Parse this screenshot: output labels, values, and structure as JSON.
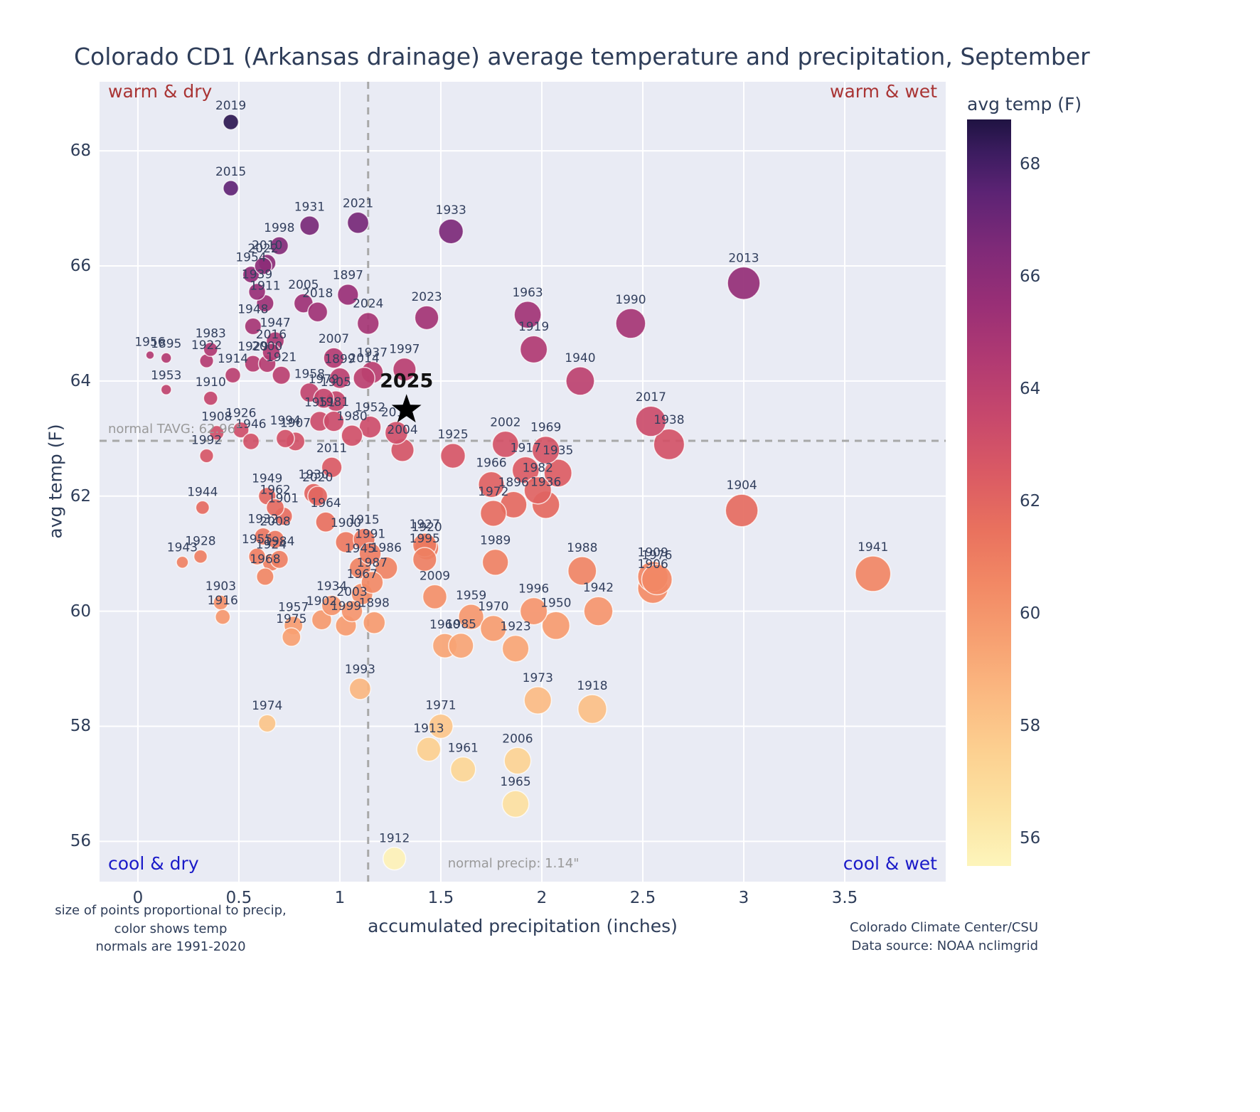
{
  "title": "Colorado CD1 (Arkansas drainage) average temperature and precipitation, September",
  "quadrant_labels": {
    "top_left": "warm & dry",
    "top_right": "warm & wet",
    "bottom_left": "cool & dry",
    "bottom_right": "cool & wet"
  },
  "normals": {
    "tavg_label": "normal TAVG: 62.96°",
    "tavg_value": 62.96,
    "precip_label": "normal precip: 1.14\"",
    "precip_value": 1.14
  },
  "axes": {
    "xlabel": "accumulated precipitation (inches)",
    "ylabel": "avg temp (F)",
    "xticks": [
      "0",
      "0.5",
      "1",
      "1.5",
      "2",
      "2.5",
      "3",
      "3.5"
    ],
    "yticks": [
      "56",
      "58",
      "60",
      "62",
      "64",
      "66",
      "68"
    ],
    "xlim": [
      -0.19,
      4.0
    ],
    "ylim": [
      55.3,
      69.2
    ]
  },
  "colorbar": {
    "title": "avg temp (F)",
    "ticks": [
      "68",
      "66",
      "64",
      "62",
      "60",
      "58",
      "56"
    ],
    "domain": [
      55.5,
      68.8
    ],
    "stops": [
      [
        55.5,
        "#fdf5bb"
      ],
      [
        56.5,
        "#fce3a2"
      ],
      [
        57.5,
        "#fcd191"
      ],
      [
        58.5,
        "#fbba82"
      ],
      [
        59.5,
        "#f7a172"
      ],
      [
        60.5,
        "#f28965"
      ],
      [
        61.5,
        "#e9715e"
      ],
      [
        62.5,
        "#da5a64"
      ],
      [
        63.5,
        "#c7486c"
      ],
      [
        64.5,
        "#b13a72"
      ],
      [
        65.5,
        "#992f76"
      ],
      [
        66.5,
        "#7f2a78"
      ],
      [
        67.5,
        "#5c2374"
      ],
      [
        68.2,
        "#3c1c60"
      ],
      [
        68.8,
        "#1f1342"
      ]
    ]
  },
  "colors": {
    "plot_bg": "#e9ebf4",
    "grid": "#ffffff",
    "dashed": "#a8a8a8",
    "text": "#2e3d59",
    "point_label": "#33405e",
    "warm_label": "#a93434",
    "cool_label": "#1a1ac8",
    "star": "#000000"
  },
  "footnotes": {
    "left": [
      "size of points proportional to precip,",
      "color shows temp",
      "normals are 1991-2020"
    ],
    "right": [
      "Colorado Climate Center/CSU",
      "Data source: NOAA nclimgrid"
    ]
  },
  "chart_data": {
    "type": "scatter",
    "title": "Colorado CD1 (Arkansas drainage) average temperature and precipitation, September",
    "xlabel": "accumulated precipitation (inches)",
    "ylabel": "avg temp (F)",
    "xlim": [
      -0.19,
      4.0
    ],
    "ylim": [
      55.3,
      69.2
    ],
    "size_encoding": "precip",
    "color_encoding": "temp",
    "highlight": {
      "year": "2025",
      "precip": 1.33,
      "temp": 63.5,
      "marker": "star"
    },
    "columns": [
      "year",
      "precip_in",
      "avg_temp_f"
    ],
    "points": [
      [
        1895,
        0.14,
        64.4
      ],
      [
        1896,
        1.86,
        61.85
      ],
      [
        1897,
        1.04,
        65.5
      ],
      [
        1898,
        1.17,
        59.8
      ],
      [
        1899,
        1.0,
        64.05
      ],
      [
        1900,
        1.03,
        61.2
      ],
      [
        1901,
        0.72,
        61.65
      ],
      [
        1902,
        0.91,
        59.85
      ],
      [
        1903,
        0.41,
        60.15
      ],
      [
        1904,
        2.99,
        61.75
      ],
      [
        1905,
        0.98,
        63.65
      ],
      [
        1906,
        2.55,
        60.4
      ],
      [
        1907,
        0.78,
        62.95
      ],
      [
        1908,
        0.39,
        63.1
      ],
      [
        1909,
        2.55,
        60.6
      ],
      [
        1910,
        0.36,
        63.7
      ],
      [
        1911,
        0.63,
        65.35
      ],
      [
        1912,
        1.27,
        55.7
      ],
      [
        1913,
        1.44,
        57.6
      ],
      [
        1914,
        0.47,
        64.1
      ],
      [
        1915,
        1.12,
        61.25
      ],
      [
        1916,
        0.42,
        59.9
      ],
      [
        1917,
        1.92,
        62.45
      ],
      [
        1918,
        2.25,
        58.3
      ],
      [
        1919,
        1.96,
        64.55
      ],
      [
        1920,
        1.43,
        61.1
      ],
      [
        1921,
        0.71,
        64.1
      ],
      [
        1922,
        0.34,
        64.35
      ],
      [
        1923,
        1.87,
        59.35
      ],
      [
        1924,
        0.66,
        60.85
      ],
      [
        1925,
        1.56,
        62.7
      ],
      [
        1926,
        0.51,
        63.15
      ],
      [
        1927,
        1.42,
        61.15
      ],
      [
        1928,
        0.31,
        60.95
      ],
      [
        1929,
        0.57,
        64.3
      ],
      [
        1930,
        0.87,
        62.05
      ],
      [
        1931,
        0.85,
        66.7
      ],
      [
        1932,
        0.62,
        61.3
      ],
      [
        1933,
        1.55,
        66.6
      ],
      [
        1934,
        0.96,
        60.1
      ],
      [
        1935,
        2.08,
        62.4
      ],
      [
        1936,
        2.02,
        61.85
      ],
      [
        1937,
        1.16,
        64.15
      ],
      [
        1938,
        2.63,
        62.9
      ],
      [
        1939,
        0.59,
        65.55
      ],
      [
        1940,
        2.19,
        64.0
      ],
      [
        1941,
        3.64,
        60.65
      ],
      [
        1942,
        2.28,
        60.0
      ],
      [
        1943,
        0.22,
        60.85
      ],
      [
        1944,
        0.32,
        61.8
      ],
      [
        1945,
        1.1,
        60.75
      ],
      [
        1946,
        0.56,
        62.95
      ],
      [
        1947,
        0.68,
        64.7
      ],
      [
        1948,
        0.57,
        64.95
      ],
      [
        1949,
        0.64,
        62.0
      ],
      [
        1950,
        2.07,
        59.75
      ],
      [
        1951,
        0.9,
        63.3
      ],
      [
        1952,
        1.15,
        63.2
      ],
      [
        1953,
        0.14,
        63.85
      ],
      [
        1954,
        0.56,
        65.85
      ],
      [
        1955,
        0.59,
        60.95
      ],
      [
        1956,
        0.06,
        64.45
      ],
      [
        1957,
        0.77,
        59.75
      ],
      [
        1958,
        0.85,
        63.8
      ],
      [
        1959,
        1.65,
        59.9
      ],
      [
        1960,
        1.52,
        59.4
      ],
      [
        1961,
        1.61,
        57.25
      ],
      [
        1962,
        0.68,
        61.8
      ],
      [
        1963,
        1.93,
        65.15
      ],
      [
        1964,
        0.93,
        61.55
      ],
      [
        1965,
        1.87,
        56.65
      ],
      [
        1966,
        1.75,
        62.2
      ],
      [
        1967,
        1.11,
        60.3
      ],
      [
        1968,
        0.63,
        60.6
      ],
      [
        1969,
        2.02,
        62.8
      ],
      [
        1970,
        1.76,
        59.7
      ],
      [
        1971,
        1.5,
        58.0
      ],
      [
        1972,
        1.76,
        61.7
      ],
      [
        1973,
        1.98,
        58.45
      ],
      [
        1974,
        0.64,
        58.05
      ],
      [
        1975,
        0.76,
        59.55
      ],
      [
        1976,
        2.57,
        60.55
      ],
      [
        1979,
        0.92,
        63.7
      ],
      [
        1980,
        1.06,
        63.05
      ],
      [
        1981,
        0.97,
        63.3
      ],
      [
        1982,
        1.98,
        62.1
      ],
      [
        1983,
        0.36,
        64.55
      ],
      [
        1984,
        0.7,
        60.9
      ],
      [
        1985,
        1.6,
        59.4
      ],
      [
        1986,
        1.23,
        60.75
      ],
      [
        1987,
        1.16,
        60.5
      ],
      [
        1988,
        2.2,
        60.7
      ],
      [
        1989,
        1.77,
        60.85
      ],
      [
        1990,
        2.44,
        65.0
      ],
      [
        1991,
        1.15,
        61.0
      ],
      [
        1992,
        0.34,
        62.7
      ],
      [
        1993,
        1.1,
        58.65
      ],
      [
        1994,
        0.73,
        63.0
      ],
      [
        1995,
        1.42,
        60.9
      ],
      [
        1996,
        1.96,
        60.0
      ],
      [
        1997,
        1.32,
        64.2
      ],
      [
        1998,
        0.7,
        66.35
      ],
      [
        1999,
        1.03,
        59.75
      ],
      [
        2000,
        0.64,
        64.3
      ],
      [
        2002,
        1.82,
        62.9
      ],
      [
        2003,
        1.06,
        60.0
      ],
      [
        2004,
        1.31,
        62.8
      ],
      [
        2005,
        0.82,
        65.35
      ],
      [
        2006,
        1.88,
        57.4
      ],
      [
        2007,
        0.97,
        64.4
      ],
      [
        2008,
        0.68,
        61.25
      ],
      [
        2009,
        1.47,
        60.25
      ],
      [
        2010,
        0.64,
        66.05
      ],
      [
        2011,
        0.96,
        62.5
      ],
      [
        2012,
        1.28,
        63.1
      ],
      [
        2013,
        3.0,
        65.7
      ],
      [
        2014,
        1.12,
        64.05
      ],
      [
        2015,
        0.46,
        67.35
      ],
      [
        2016,
        0.66,
        64.5
      ],
      [
        2017,
        2.54,
        63.3
      ],
      [
        2018,
        0.89,
        65.2
      ],
      [
        2019,
        0.46,
        68.5
      ],
      [
        2020,
        0.89,
        62.0
      ],
      [
        2021,
        1.09,
        66.75
      ],
      [
        2022,
        0.62,
        66.0
      ],
      [
        2023,
        1.43,
        65.1
      ],
      [
        2024,
        1.14,
        65.0
      ]
    ]
  }
}
